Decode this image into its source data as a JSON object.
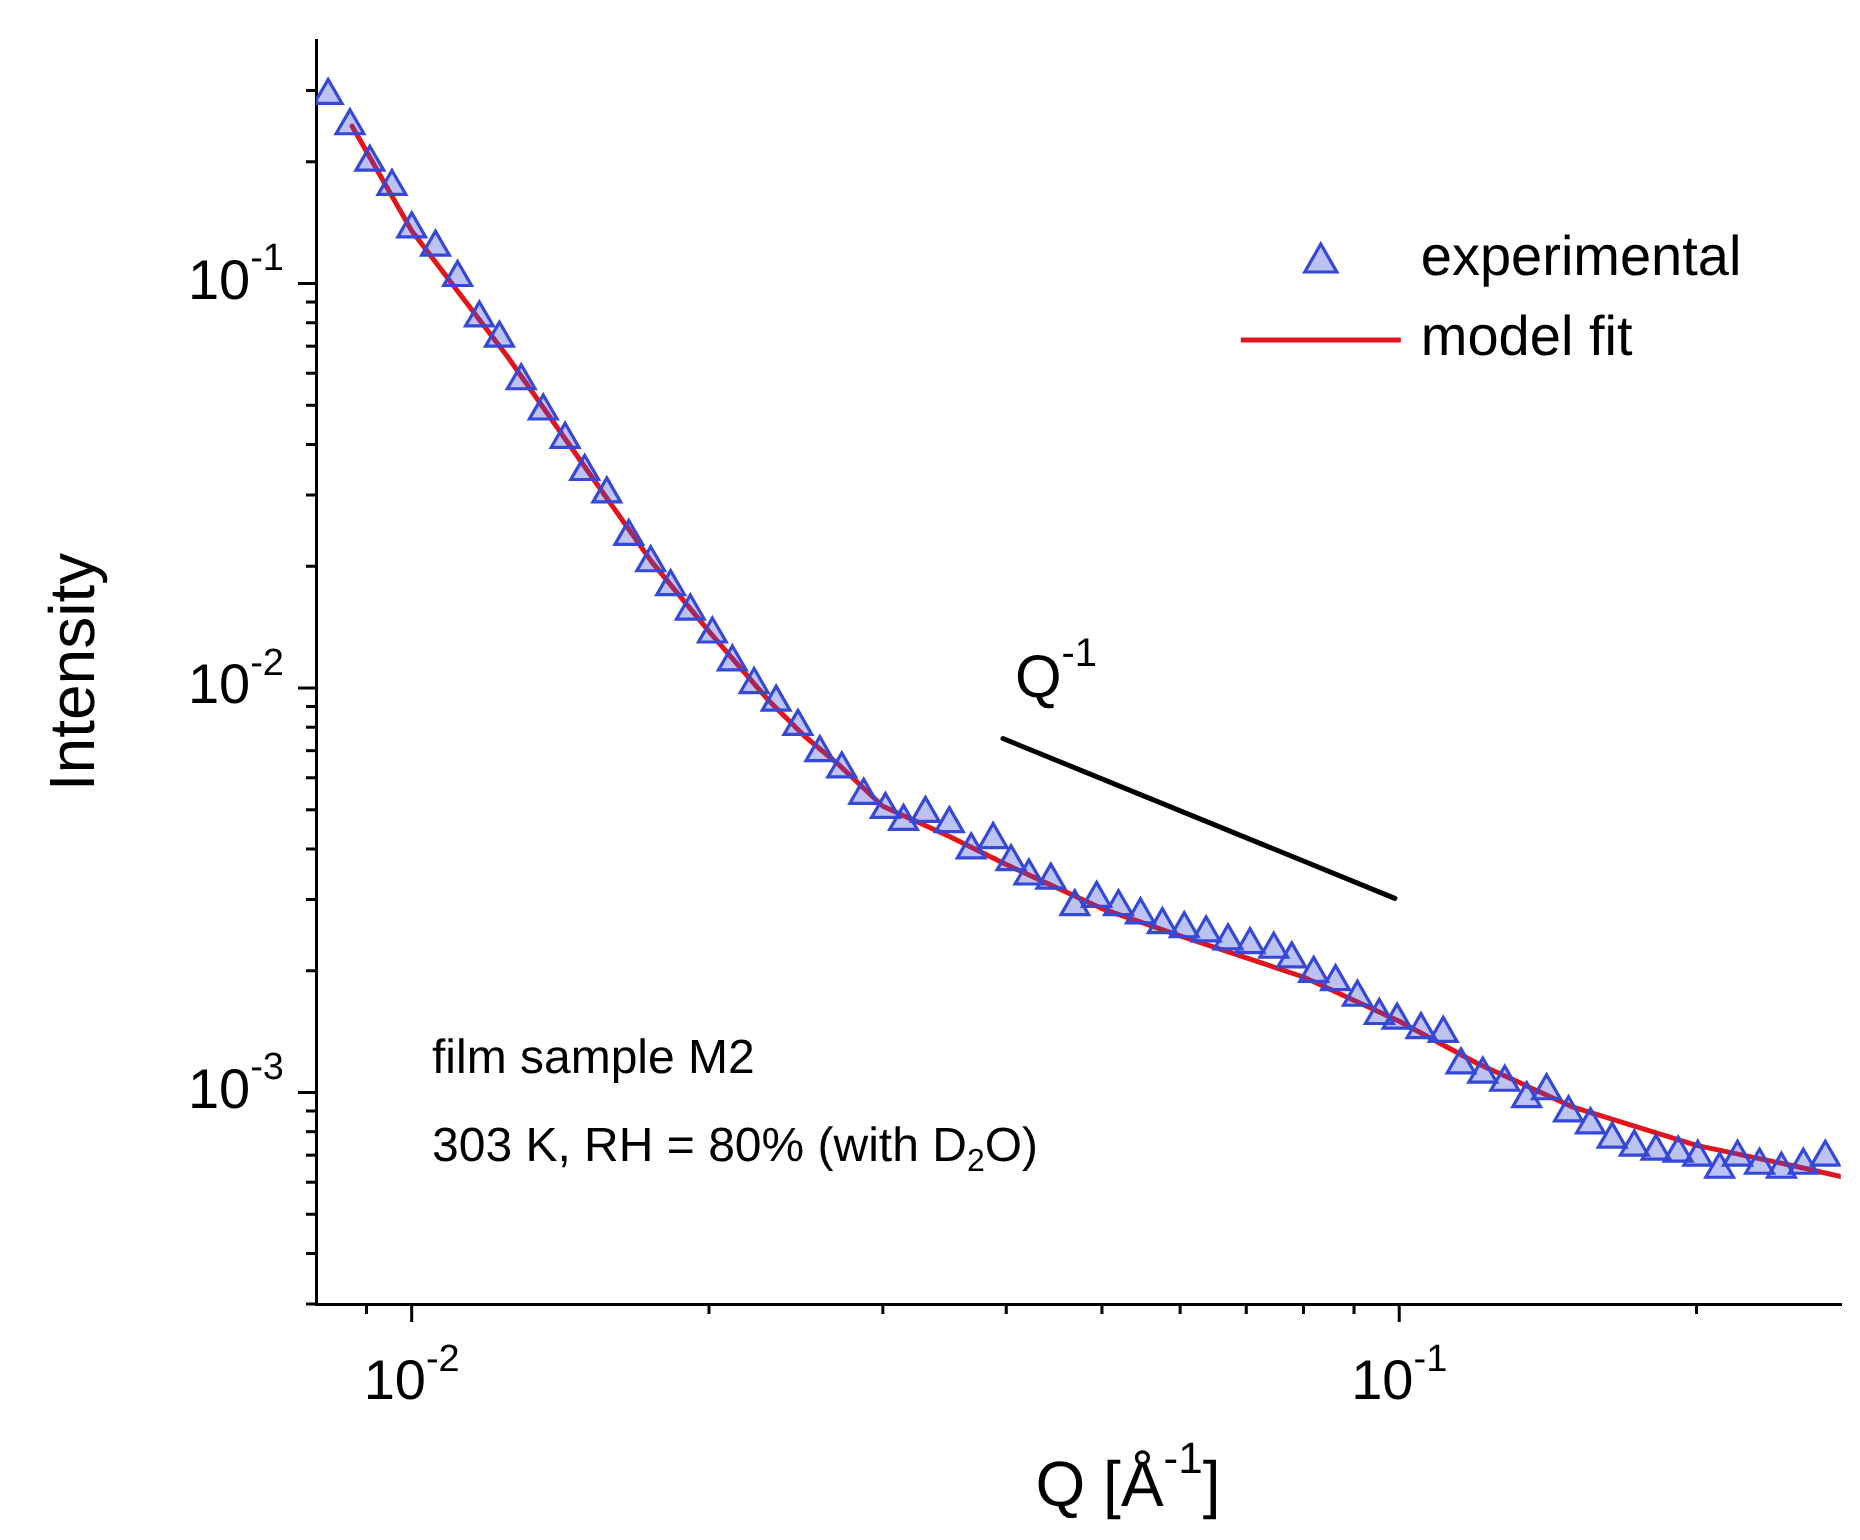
{
  "chart_data": {
    "type": "scatter",
    "xlabel": "Q [Å$^{-1}$]",
    "ylabel": "Intensity",
    "log": "xy",
    "grid": false,
    "legend": "top right",
    "xlim": [
      0.008,
      0.28
    ],
    "ylim": [
      0.0003,
      0.4
    ],
    "xticks": [
      {
        "value": 0.009,
        "label": null
      },
      {
        "value": 0.01,
        "label": "10$^{-2}$"
      },
      {
        "value": 0.02,
        "label": null
      },
      {
        "value": 0.03,
        "label": null
      },
      {
        "value": 0.04,
        "label": null
      },
      {
        "value": 0.05,
        "label": null
      },
      {
        "value": 0.06,
        "label": null
      },
      {
        "value": 0.07,
        "label": null
      },
      {
        "value": 0.08,
        "label": null
      },
      {
        "value": 0.09,
        "label": null
      },
      {
        "value": 0.1,
        "label": "10$^{-1}$"
      },
      {
        "value": 0.2,
        "label": null
      }
    ],
    "yticks": [
      {
        "value": 0.0003,
        "label": null
      },
      {
        "value": 0.0004,
        "label": null
      },
      {
        "value": 0.0005,
        "label": null
      },
      {
        "value": 0.0006,
        "label": null
      },
      {
        "value": 0.0007,
        "label": null
      },
      {
        "value": 0.0008,
        "label": null
      },
      {
        "value": 0.0009,
        "label": null
      },
      {
        "value": 0.001,
        "label": "10$^{-3}$"
      },
      {
        "value": 0.002,
        "label": null
      },
      {
        "value": 0.003,
        "label": null
      },
      {
        "value": 0.004,
        "label": null
      },
      {
        "value": 0.005,
        "label": null
      },
      {
        "value": 0.006,
        "label": null
      },
      {
        "value": 0.007,
        "label": null
      },
      {
        "value": 0.008,
        "label": null
      },
      {
        "value": 0.009,
        "label": null
      },
      {
        "value": 0.01,
        "label": "10$^{-2}$"
      },
      {
        "value": 0.02,
        "label": null
      },
      {
        "value": 0.03,
        "label": null
      },
      {
        "value": 0.04,
        "label": null
      },
      {
        "value": 0.05,
        "label": null
      },
      {
        "value": 0.06,
        "label": null
      },
      {
        "value": 0.07,
        "label": null
      },
      {
        "value": 0.08,
        "label": null
      },
      {
        "value": 0.09,
        "label": null
      },
      {
        "value": 0.1,
        "label": "10$^{-1}$"
      },
      {
        "value": 0.2,
        "label": null
      },
      {
        "value": 0.3,
        "label": null
      }
    ],
    "series": [
      {
        "name": "experimental",
        "marker": "triangle",
        "color": "#3548d8",
        "x": [
          0.00823,
          0.00866,
          0.00907,
          0.00955,
          0.01,
          0.01057,
          0.01113,
          0.01171,
          0.01227,
          0.01291,
          0.01359,
          0.0143,
          0.01497,
          0.01576,
          0.01659,
          0.01746,
          0.01829,
          0.01915,
          0.02016,
          0.02112,
          0.02222,
          0.02339,
          0.02461,
          0.0259,
          0.02726,
          0.02869,
          0.03018,
          0.03148,
          0.03313,
          0.03503,
          0.03686,
          0.0388,
          0.04045,
          0.04217,
          0.04438,
          0.04693,
          0.04938,
          0.05197,
          0.0547,
          0.05756,
          0.06058,
          0.06375,
          0.06709,
          0.07061,
          0.07464,
          0.07783,
          0.08191,
          0.0862,
          0.09072,
          0.09546,
          0.0995,
          0.1052,
          0.1108,
          0.1155,
          0.1215,
          0.1279,
          0.1346,
          0.141,
          0.1484,
          0.1562,
          0.1643,
          0.173,
          0.182,
          0.1916,
          0.2006,
          0.2111,
          0.2201,
          0.2317,
          0.2438,
          0.2566,
          0.2701
        ],
        "values": [
          0.2917,
          0.2455,
          0.1995,
          0.1738,
          0.1365,
          0.123,
          0.1035,
          0.0822,
          0.0733,
          0.0575,
          0.0484,
          0.0412,
          0.0343,
          0.0302,
          0.0237,
          0.0204,
          0.0178,
          0.0155,
          0.0136,
          0.0116,
          0.0102,
          0.00923,
          0.00804,
          0.00692,
          0.00631,
          0.00543,
          0.00501,
          0.00468,
          0.0049,
          0.00462,
          0.00398,
          0.00422,
          0.00372,
          0.00343,
          0.00335,
          0.00288,
          0.00302,
          0.00288,
          0.00275,
          0.0026,
          0.00254,
          0.00248,
          0.00237,
          0.00232,
          0.00226,
          0.00214,
          0.00197,
          0.00188,
          0.00172,
          0.00155,
          0.00151,
          0.00143,
          0.0014,
          0.00117,
          0.00111,
          0.00106,
          0.000966,
          0.00101,
          0.000891,
          0.000832,
          0.000767,
          0.000733,
          0.000716,
          0.000708,
          0.000692,
          0.000646,
          0.000692,
          0.000661,
          0.000646,
          0.000661,
          0.000692
        ]
      },
      {
        "name": "model fit",
        "type": "line",
        "line_style": "solid",
        "color": "#e3141c",
        "x": [
          0.0087,
          0.01,
          0.0125,
          0.015,
          0.0175,
          0.02,
          0.023,
          0.025,
          0.027,
          0.03,
          0.035,
          0.04,
          0.05,
          0.06,
          0.08,
          0.1,
          0.12,
          0.15,
          0.2,
          0.25,
          0.28
        ],
        "values": [
          0.245,
          0.135,
          0.066,
          0.035,
          0.0205,
          0.0138,
          0.0093,
          0.0076,
          0.0065,
          0.0051,
          0.0043,
          0.00366,
          0.00285,
          0.00244,
          0.00193,
          0.0015,
          0.00118,
          0.00092,
          0.00074,
          0.00066,
          0.00062
        ]
      },
      {
        "type": "line",
        "line_style": "solid",
        "color": "#000000",
        "x": [
          0.0397,
          0.099
        ],
        "values": [
          0.0075,
          0.00302
        ]
      }
    ],
    "annotations": [
      "Q$^{-1}$",
      "film sample M2",
      "303 K, RH = 80% (with D$_{2}$O)"
    ]
  }
}
